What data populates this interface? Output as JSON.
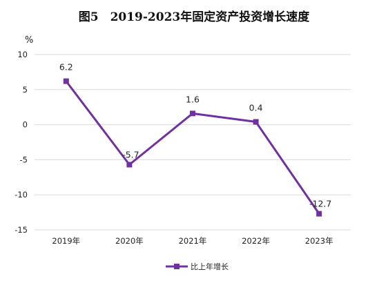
{
  "chart_data": {
    "type": "line",
    "title": "图5　2019-2023年固定资产投资增长速度",
    "unit": "%",
    "categories": [
      "2019年",
      "2020年",
      "2021年",
      "2022年",
      "2023年"
    ],
    "series": [
      {
        "name": "比上年增长",
        "values": [
          6.2,
          -5.7,
          1.6,
          0.4,
          -12.7
        ],
        "color": "#7030a0"
      }
    ],
    "data_labels": [
      "6.2",
      "-5.7",
      "1.6",
      "0.4",
      "-12.7"
    ],
    "ylim": [
      -15,
      10
    ],
    "yticks": [
      10,
      5,
      0,
      -5,
      -10,
      -15
    ],
    "grid": true,
    "legend_position": "bottom",
    "marker": "square"
  }
}
